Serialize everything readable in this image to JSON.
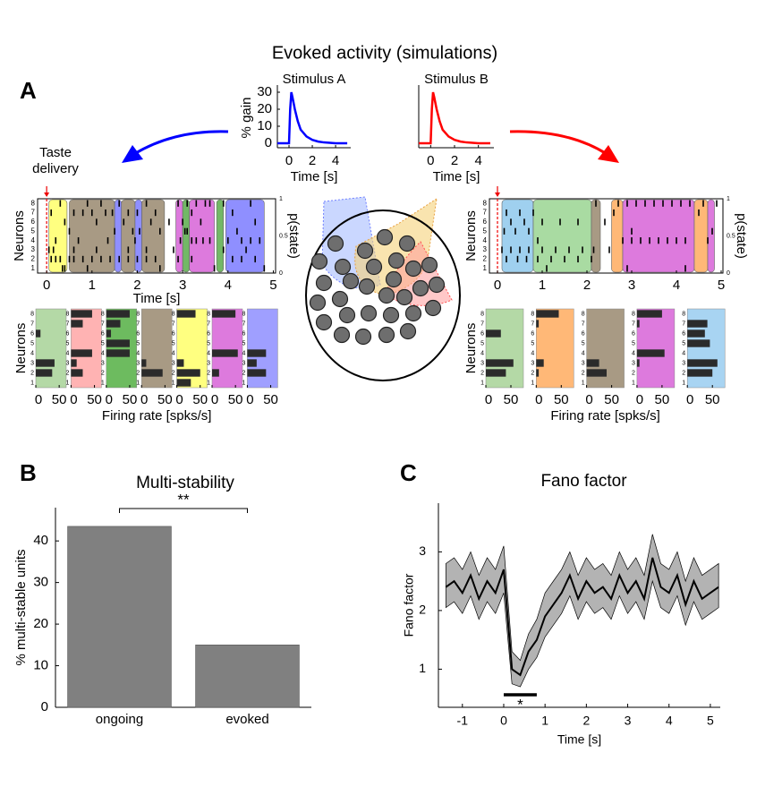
{
  "title": "Evoked activity (simulations)",
  "panel_labels": [
    "A",
    "B",
    "C"
  ],
  "chart_data": [
    {
      "type": "line",
      "title": "Stimulus A",
      "ylabel": "% gain",
      "xlabel": "Time [s]",
      "xlim": [
        -1,
        5.3
      ],
      "ylim": [
        0,
        30
      ],
      "xticks": [
        0,
        2,
        4
      ],
      "yticks": [
        0,
        10,
        20,
        30
      ],
      "x": [
        -1,
        0,
        0.1,
        0.2,
        0.3,
        0.5,
        0.75,
        1,
        1.5,
        2,
        2.5,
        3,
        4,
        5
      ],
      "series": [
        {
          "color": "#0000ff",
          "values": [
            0,
            0,
            20,
            30,
            27,
            20,
            13,
            8,
            4,
            2,
            1,
            0.5,
            0,
            0
          ]
        }
      ]
    },
    {
      "type": "line",
      "title": "Stimulus B",
      "xlabel": "Time [s]",
      "xlim": [
        -1,
        5.3
      ],
      "ylim": [
        0,
        30
      ],
      "xticks": [
        0,
        2,
        4
      ],
      "x": [
        -1,
        0,
        0.1,
        0.2,
        0.3,
        0.5,
        0.75,
        1,
        1.5,
        2,
        2.5,
        3,
        4,
        5
      ],
      "series": [
        {
          "color": "#ff0000",
          "values": [
            0,
            0,
            20,
            30,
            27,
            20,
            13,
            8,
            4,
            2,
            1,
            0.5,
            0,
            0
          ]
        }
      ]
    },
    {
      "type": "raster",
      "ylabel": "Neurons",
      "y2label": "p(state)",
      "xlabel": "Time [s]",
      "annotation": "Taste delivery",
      "xlim": [
        -0.2,
        5.05
      ],
      "ylim": [
        0.5,
        8.5
      ],
      "xticks": [
        0,
        1,
        2,
        3,
        4,
        5
      ],
      "yticks": [
        1,
        2,
        3,
        4,
        5,
        6,
        7,
        8
      ],
      "y2lim": [
        0,
        1
      ],
      "y2ticks": [
        0,
        0.5,
        1
      ],
      "stimulus_onset": 0,
      "states": [
        {
          "start": 0.05,
          "end": 0.45,
          "color": "#ffff80"
        },
        {
          "start": 0.5,
          "end": 1.5,
          "color": "#a89a84"
        },
        {
          "start": 1.5,
          "end": 1.65,
          "color": "#8f8fff"
        },
        {
          "start": 1.65,
          "end": 1.95,
          "color": "#a89a84"
        },
        {
          "start": 1.95,
          "end": 2.1,
          "color": "#8f8fff"
        },
        {
          "start": 2.1,
          "end": 2.6,
          "color": "#a89a84"
        },
        {
          "start": 2.85,
          "end": 3.0,
          "color": "#dd7add"
        },
        {
          "start": 3.0,
          "end": 3.15,
          "color": "#73b866"
        },
        {
          "start": 3.15,
          "end": 3.7,
          "color": "#dd7add"
        },
        {
          "start": 3.75,
          "end": 3.9,
          "color": "#73b866"
        },
        {
          "start": 3.95,
          "end": 4.8,
          "color": "#8f8fff"
        }
      ],
      "spikes": [
        [
          0.35,
          0.4,
          0.9,
          2.5,
          3.7,
          4.8
        ],
        [
          0.1,
          0.2,
          0.3,
          0.5,
          0.6,
          0.8,
          1.0,
          1.2,
          1.4,
          1.6,
          1.8,
          2.0,
          2.2,
          2.4,
          2.9,
          3.2,
          4.1,
          4.3,
          4.6
        ],
        [
          0.05,
          0.15,
          0.6,
          1.1,
          1.8,
          2.2,
          2.8,
          3.9,
          4.4
        ],
        [
          0.2,
          0.7,
          1.35,
          1.95,
          2.95,
          3.2,
          3.3,
          3.45,
          3.6,
          4.0,
          4.3,
          4.5,
          4.7
        ],
        [
          0.5,
          1.5,
          1.9,
          2.05,
          2.5,
          3.05,
          3.1,
          4.2
        ],
        [
          0.4,
          1.1,
          1.7,
          2.3,
          2.7,
          3.0,
          3.4,
          4.6
        ],
        [
          0.1,
          0.6,
          0.8,
          1.0,
          1.3,
          1.45,
          1.8,
          2.0,
          2.4,
          3.2,
          4.1
        ],
        [
          0.3,
          0.9,
          1.2,
          1.6,
          2.2,
          2.9,
          3.1,
          3.3,
          3.5,
          3.6,
          3.9,
          4.5
        ]
      ]
    },
    {
      "type": "raster",
      "ylabel": "Neurons",
      "y2label": "p(state)",
      "xlim": [
        -0.18,
        5.04
      ],
      "ylim": [
        0.5,
        8.5
      ],
      "xticks": [
        0,
        1,
        2,
        3,
        4,
        5
      ],
      "yticks": [
        1,
        2,
        3,
        4,
        5,
        6,
        7,
        8
      ],
      "y2lim": [
        0,
        1
      ],
      "y2ticks": [
        0,
        0.5,
        1
      ],
      "stimulus_onset": 0,
      "states": [
        {
          "start": 0.1,
          "end": 0.8,
          "color": "#9fd0ef"
        },
        {
          "start": 0.8,
          "end": 2.1,
          "color": "#a9dba2"
        },
        {
          "start": 2.1,
          "end": 2.3,
          "color": "#a89a84"
        },
        {
          "start": 2.55,
          "end": 2.8,
          "color": "#ffb877"
        },
        {
          "start": 2.8,
          "end": 4.4,
          "color": "#dd7add"
        },
        {
          "start": 4.4,
          "end": 4.7,
          "color": "#ffb877"
        },
        {
          "start": 4.7,
          "end": 4.85,
          "color": "#dd7add"
        }
      ],
      "spikes": [
        [
          1.1,
          2.9,
          4.2
        ],
        [
          0.2,
          0.45,
          0.65,
          0.9,
          1.2,
          1.5,
          1.8,
          2.1
        ],
        [
          0.1,
          0.3,
          0.5,
          0.7,
          1.0,
          1.3,
          1.6,
          1.9,
          2.15,
          2.5
        ],
        [
          0.9,
          2.8,
          3.0,
          3.2,
          3.4,
          3.6,
          3.8,
          4.0,
          4.2,
          4.7
        ],
        [
          0.15,
          0.4,
          0.7,
          3.0,
          4.8
        ],
        [
          0.3,
          0.6,
          1.0,
          1.4,
          1.8,
          2.4
        ],
        [
          0.2,
          0.5,
          0.8,
          2.6,
          4.5
        ],
        [
          2.2,
          2.7,
          2.9,
          3.1,
          3.3,
          3.5,
          3.7,
          3.9,
          4.1,
          4.3,
          4.6,
          4.9
        ]
      ]
    },
    {
      "type": "hbar-panels",
      "ylabel": "Neurons",
      "xlabel": "Firing rate [spks/s]",
      "xlim": [
        0,
        65
      ],
      "ylim": [
        0.5,
        8.5
      ],
      "xticks": [
        0,
        50
      ],
      "yticks": [
        1,
        2,
        3,
        4,
        5,
        6,
        7,
        8
      ],
      "panels": [
        {
          "color": "#b4d9a6",
          "values": [
            0,
            35,
            40,
            0,
            0,
            10,
            0,
            0
          ]
        },
        {
          "color": "#ffb3b3",
          "values": [
            0,
            25,
            12,
            45,
            0,
            0,
            25,
            45
          ]
        },
        {
          "color": "#6dbb5f",
          "values": [
            0,
            0,
            0,
            50,
            50,
            10,
            30,
            50
          ]
        },
        {
          "color": "#a89a84",
          "values": [
            0,
            45,
            10,
            0,
            0,
            0,
            0,
            0
          ]
        },
        {
          "color": "#ffff80",
          "values": [
            30,
            50,
            15,
            0,
            0,
            0,
            0,
            40
          ]
        },
        {
          "color": "#dd7add",
          "values": [
            0,
            15,
            0,
            55,
            0,
            0,
            0,
            50
          ]
        },
        {
          "color": "#9f9fff",
          "values": [
            0,
            40,
            20,
            40,
            0,
            0,
            0,
            0
          ]
        }
      ]
    },
    {
      "type": "hbar-panels",
      "ylabel": "Neurons",
      "xlabel": "Firing rate [spks/s]",
      "xlim": [
        0,
        75
      ],
      "ylim": [
        0.5,
        8.5
      ],
      "xticks": [
        0,
        50
      ],
      "yticks": [
        1,
        2,
        3,
        4,
        5,
        6,
        7,
        8
      ],
      "panels": [
        {
          "color": "#b4d9a6",
          "values": [
            0,
            40,
            55,
            0,
            0,
            30,
            0,
            0
          ]
        },
        {
          "color": "#ffb877",
          "values": [
            0,
            5,
            15,
            0,
            0,
            0,
            5,
            45
          ]
        },
        {
          "color": "#a89a84",
          "values": [
            0,
            40,
            25,
            0,
            0,
            0,
            0,
            0
          ]
        },
        {
          "color": "#dd7add",
          "values": [
            0,
            0,
            5,
            55,
            0,
            0,
            5,
            50
          ]
        },
        {
          "color": "#a8d4f2",
          "values": [
            0,
            50,
            60,
            0,
            45,
            35,
            40,
            0
          ]
        }
      ]
    },
    {
      "type": "bar",
      "title": "Multi-stability",
      "ylabel": "% multi-stable units",
      "annotation": "**",
      "categories": [
        "ongoing",
        "evoked"
      ],
      "values": [
        43.5,
        15
      ],
      "color": "#808080",
      "ylim": [
        0,
        48
      ],
      "yticks": [
        0,
        10,
        20,
        30,
        40
      ]
    },
    {
      "type": "band-line",
      "title": "Fano factor",
      "ylabel": "Fano factor",
      "xlabel": "Time [s]",
      "xlim": [
        -1.58,
        5.24
      ],
      "ylim": [
        0.35,
        3.83
      ],
      "xticks": [
        -1,
        0,
        1,
        2,
        3,
        4,
        5
      ],
      "yticks": [
        1,
        2,
        3
      ],
      "color": "#000000",
      "band_color": "#b3b3b3",
      "x": [
        -1.4,
        -1.2,
        -1.0,
        -0.8,
        -0.6,
        -0.4,
        -0.2,
        0,
        0.2,
        0.4,
        0.6,
        0.8,
        1.0,
        1.2,
        1.4,
        1.6,
        1.8,
        2.0,
        2.2,
        2.4,
        2.6,
        2.8,
        3.0,
        3.2,
        3.4,
        3.6,
        3.8,
        4.0,
        4.2,
        4.4,
        4.6,
        4.8,
        5.0,
        5.2
      ],
      "values": [
        2.4,
        2.5,
        2.3,
        2.6,
        2.2,
        2.5,
        2.3,
        2.7,
        1.0,
        0.9,
        1.3,
        1.5,
        1.9,
        2.1,
        2.3,
        2.6,
        2.2,
        2.5,
        2.3,
        2.4,
        2.2,
        2.6,
        2.3,
        2.5,
        2.2,
        2.9,
        2.4,
        2.3,
        2.6,
        2.1,
        2.5,
        2.2,
        2.3,
        2.4
      ],
      "lower": [
        2.05,
        2.15,
        1.95,
        2.25,
        1.85,
        2.15,
        1.95,
        2.3,
        0.75,
        0.7,
        1.0,
        1.2,
        1.55,
        1.75,
        1.95,
        2.25,
        1.85,
        2.15,
        1.95,
        2.05,
        1.85,
        2.25,
        1.95,
        2.15,
        1.85,
        2.5,
        2.05,
        1.95,
        2.25,
        1.75,
        2.15,
        1.85,
        1.95,
        2.05
      ],
      "upper": [
        2.8,
        2.9,
        2.7,
        3.0,
        2.6,
        2.9,
        2.7,
        3.1,
        1.3,
        1.15,
        1.6,
        1.85,
        2.3,
        2.5,
        2.7,
        3.0,
        2.6,
        2.9,
        2.7,
        2.8,
        2.6,
        3.0,
        2.7,
        2.9,
        2.6,
        3.3,
        2.8,
        2.7,
        3.0,
        2.5,
        2.9,
        2.6,
        2.7,
        2.8
      ],
      "significance": {
        "start": 0,
        "end": 0.8,
        "label": "*"
      }
    }
  ]
}
